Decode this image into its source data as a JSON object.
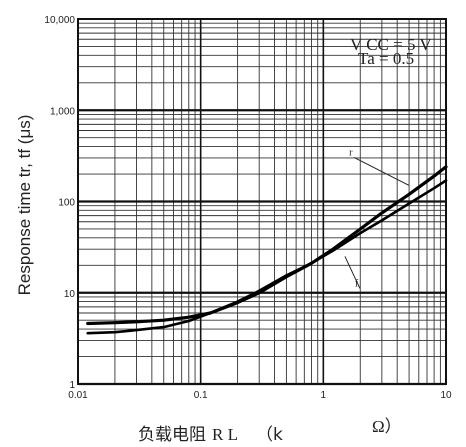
{
  "chart_data": {
    "type": "line",
    "x_scale": "log",
    "y_scale": "log",
    "xlim": [
      0.01,
      10
    ],
    "ylim": [
      1,
      10000
    ],
    "grid": true,
    "x_tick_labels": [
      {
        "value": 0.01,
        "label": "0.01"
      },
      {
        "value": 0.1,
        "label": "0.1"
      },
      {
        "value": 1,
        "label": "1"
      },
      {
        "value": 10,
        "label": "10"
      }
    ],
    "y_tick_labels": [
      {
        "value": 1,
        "label": "1"
      },
      {
        "value": 10,
        "label": "10"
      },
      {
        "value": 100,
        "label": "100"
      },
      {
        "value": 1000,
        "label": "1,000"
      },
      {
        "value": 10000,
        "label": "10,000"
      }
    ],
    "ylabel": "Response time tr, tf (μs)",
    "xlabel_prefix": "负载电阻",
    "xlabel_symbol": "R L",
    "xlabel_unit_open": "（k",
    "xlabel_unit_close": "Ω）",
    "conditions": [
      "V CC = 5 V",
      "Ta = 0.5"
    ],
    "series": [
      {
        "name": "tr",
        "x": [
          0.012,
          0.02,
          0.03,
          0.05,
          0.08,
          0.12,
          0.2,
          0.3,
          0.5,
          0.8,
          1.2,
          2,
          3,
          5,
          8,
          10
        ],
        "y": [
          4.6,
          4.7,
          4.8,
          5.0,
          5.4,
          6.0,
          7.8,
          10,
          15,
          21,
          30,
          50,
          75,
          120,
          190,
          240
        ]
      },
      {
        "name": "tf",
        "x": [
          0.012,
          0.02,
          0.03,
          0.05,
          0.08,
          0.12,
          0.2,
          0.3,
          0.5,
          0.8,
          1.2,
          2,
          3,
          5,
          8,
          10
        ],
        "y": [
          3.6,
          3.7,
          3.9,
          4.2,
          4.9,
          6.0,
          8.0,
          10.5,
          15.5,
          21,
          29,
          45,
          62,
          95,
          140,
          170
        ]
      }
    ],
    "series_labels": [
      {
        "series": "tr",
        "text": "r",
        "anchor_x": 5,
        "anchor_y": 150
      },
      {
        "series": "tf",
        "text": "f",
        "anchor_x": 1.5,
        "anchor_y": 25
      }
    ]
  }
}
